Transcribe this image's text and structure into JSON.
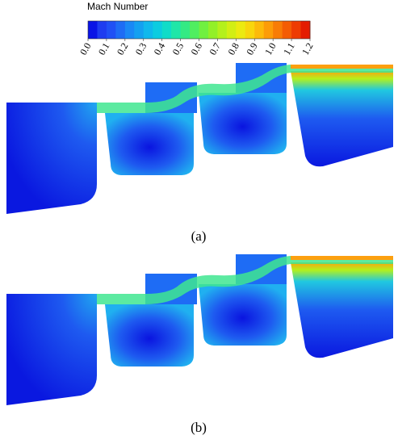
{
  "colorbar": {
    "title": "Mach Number",
    "ticks": [
      "0.0",
      "0.1",
      "0.2",
      "0.3",
      "0.4",
      "0.5",
      "0.6",
      "0.7",
      "0.8",
      "0.9",
      "1.0",
      "1.1",
      "1.2"
    ],
    "colors": [
      "#0a14e6",
      "#1e3cf0",
      "#2050f5",
      "#1e6cf5",
      "#1a88f5",
      "#14a0f0",
      "#10b8ec",
      "#0ccce0",
      "#10dcc8",
      "#20e6a8",
      "#34ea84",
      "#50ee60",
      "#70f040",
      "#92f028",
      "#b4f01c",
      "#d2ee14",
      "#ecea10",
      "#f8d60c",
      "#fcba0a",
      "#fc9c08",
      "#f87c06",
      "#f45c04",
      "#ee3c02",
      "#e41c00"
    ]
  },
  "panels": [
    {
      "label": "(a)"
    },
    {
      "label": "(b)"
    }
  ]
}
